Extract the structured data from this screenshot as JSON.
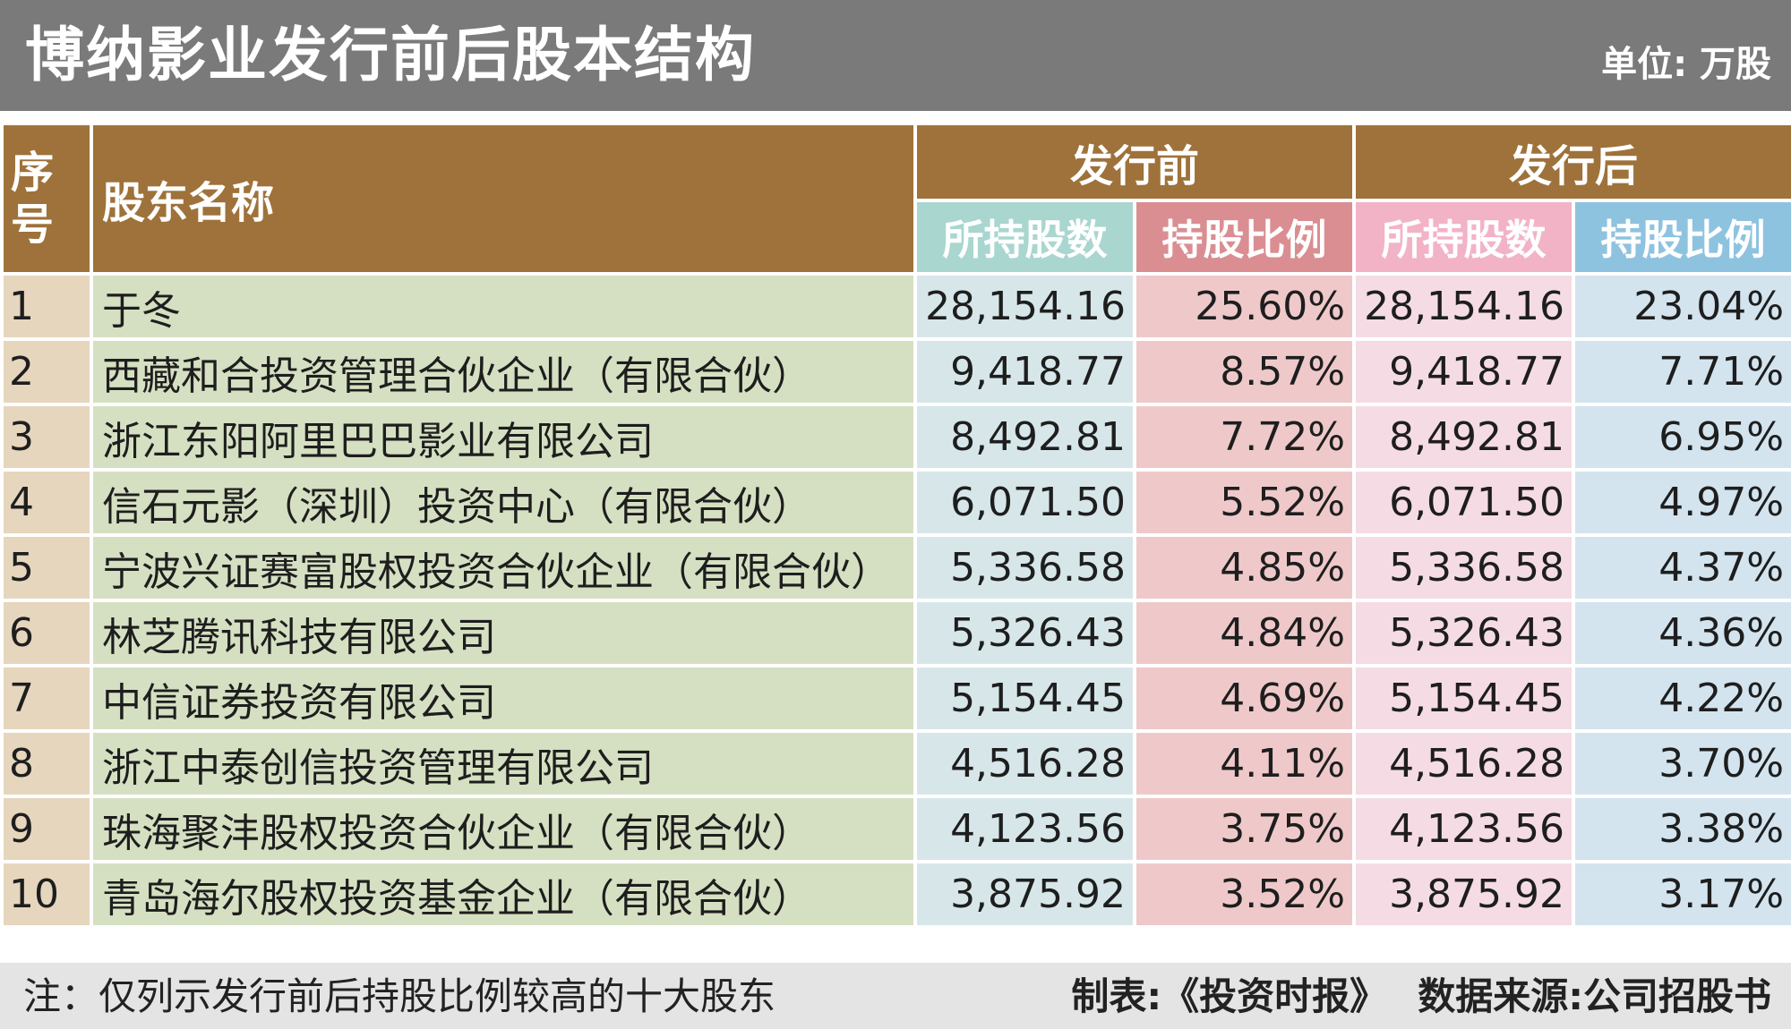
{
  "header": {
    "title": "博纳影业发行前后股本结构",
    "unit": "单位: 万股"
  },
  "table": {
    "col_seq": "序\n号",
    "col_name": "股东名称",
    "group_before": "发行前",
    "group_after": "发行后",
    "sub_shares": "所持股数",
    "sub_ratio": "持股比例",
    "rows": [
      {
        "seq": "1",
        "name": "于冬",
        "before_shares": "28,154.16",
        "before_ratio": "25.60%",
        "after_shares": "28,154.16",
        "after_ratio": "23.04%"
      },
      {
        "seq": "2",
        "name": "西藏和合投资管理合伙企业（有限合伙）",
        "before_shares": "9,418.77",
        "before_ratio": "8.57%",
        "after_shares": "9,418.77",
        "after_ratio": "7.71%"
      },
      {
        "seq": "3",
        "name": "浙江东阳阿里巴巴影业有限公司",
        "before_shares": "8,492.81",
        "before_ratio": "7.72%",
        "after_shares": "8,492.81",
        "after_ratio": "6.95%"
      },
      {
        "seq": "4",
        "name": "信石元影（深圳）投资中心（有限合伙）",
        "before_shares": "6,071.50",
        "before_ratio": "5.52%",
        "after_shares": "6,071.50",
        "after_ratio": "4.97%"
      },
      {
        "seq": "5",
        "name": "宁波兴证赛富股权投资合伙企业（有限合伙）",
        "before_shares": "5,336.58",
        "before_ratio": "4.85%",
        "after_shares": "5,336.58",
        "after_ratio": "4.37%"
      },
      {
        "seq": "6",
        "name": "林芝腾讯科技有限公司",
        "before_shares": "5,326.43",
        "before_ratio": "4.84%",
        "after_shares": "5,326.43",
        "after_ratio": "4.36%"
      },
      {
        "seq": "7",
        "name": "中信证券投资有限公司",
        "before_shares": "5,154.45",
        "before_ratio": "4.69%",
        "after_shares": "5,154.45",
        "after_ratio": "4.22%"
      },
      {
        "seq": "8",
        "name": "浙江中泰创信投资管理有限公司",
        "before_shares": "4,516.28",
        "before_ratio": "4.11%",
        "after_shares": "4,516.28",
        "after_ratio": "3.70%"
      },
      {
        "seq": "9",
        "name": "珠海聚沣股权投资合伙企业（有限合伙）",
        "before_shares": "4,123.56",
        "before_ratio": "3.75%",
        "after_shares": "4,123.56",
        "after_ratio": "3.38%"
      },
      {
        "seq": "10",
        "name": "青岛海尔股权投资基金企业（有限合伙）",
        "before_shares": "3,875.92",
        "before_ratio": "3.52%",
        "after_shares": "3,875.92",
        "after_ratio": "3.17%"
      }
    ]
  },
  "footer": {
    "note": "注：仅列示发行前后持股比例较高的十大股东",
    "credit_label": "制表:",
    "credit_value": "《投资时报》",
    "source_label": "数据来源:",
    "source_value": "公司招股书"
  },
  "colors": {
    "title_bg": "#7a7a7a",
    "header_brown": "#9e723a",
    "before_shares_header": "#a9d6cf",
    "before_ratio_header": "#da8e92",
    "after_shares_header": "#f2b3c7",
    "after_ratio_header": "#8ec3e0"
  },
  "chart_data": {
    "type": "table",
    "title": "博纳影业发行前后股本结构",
    "unit": "单位: 万股",
    "columns": [
      "序号",
      "股东名称",
      "发行前 所持股数",
      "发行前 持股比例",
      "发行后 所持股数",
      "发行后 持股比例"
    ],
    "values": [
      [
        1,
        "于冬",
        28154.16,
        25.6,
        28154.16,
        23.04
      ],
      [
        2,
        "西藏和合投资管理合伙企业（有限合伙）",
        9418.77,
        8.57,
        9418.77,
        7.71
      ],
      [
        3,
        "浙江东阳阿里巴巴影业有限公司",
        8492.81,
        7.72,
        8492.81,
        6.95
      ],
      [
        4,
        "信石元影（深圳）投资中心（有限合伙）",
        6071.5,
        5.52,
        6071.5,
        4.97
      ],
      [
        5,
        "宁波兴证赛富股权投资合伙企业（有限合伙）",
        5336.58,
        4.85,
        5336.58,
        4.37
      ],
      [
        6,
        "林芝腾讯科技有限公司",
        5326.43,
        4.84,
        5326.43,
        4.36
      ],
      [
        7,
        "中信证券投资有限公司",
        5154.45,
        4.69,
        5154.45,
        4.22
      ],
      [
        8,
        "浙江中泰创信投资管理有限公司",
        4516.28,
        4.11,
        4516.28,
        3.7
      ],
      [
        9,
        "珠海聚沣股权投资合伙企业（有限合伙）",
        4123.56,
        3.75,
        4123.56,
        3.38
      ],
      [
        10,
        "青岛海尔股权投资基金企业（有限合伙）",
        3875.92,
        3.52,
        3875.92,
        3.17
      ]
    ]
  }
}
